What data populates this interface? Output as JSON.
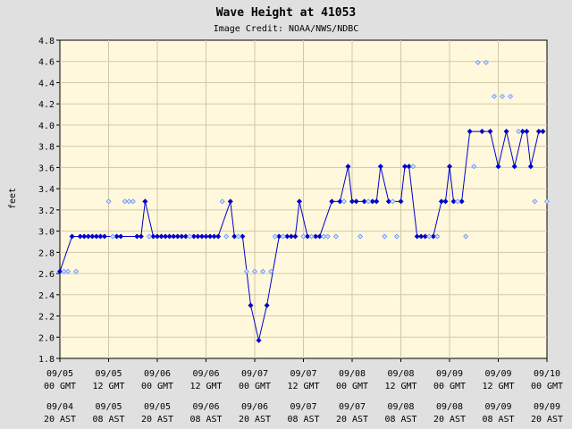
{
  "chart_data": {
    "type": "scatter",
    "title": "Wave Height at 41053",
    "subtitle": "Image Credit: NOAA/NWS/NDBC",
    "ylabel": "feet",
    "ylim": [
      1.8,
      4.8
    ],
    "yticks": [
      "1.8",
      "2.0",
      "2.2",
      "2.4",
      "2.6",
      "2.8",
      "3.0",
      "3.2",
      "3.4",
      "3.6",
      "3.8",
      "4.0",
      "4.2",
      "4.4",
      "4.6",
      "4.8"
    ],
    "x_unit": "hours since 09/05 00 GMT",
    "xlim": [
      0,
      120
    ],
    "xticks": [
      {
        "hour": 0,
        "gmt_date": "09/05",
        "gmt_time": "00 GMT",
        "ast_date": "09/04",
        "ast_time": "20 AST"
      },
      {
        "hour": 12,
        "gmt_date": "09/05",
        "gmt_time": "12 GMT",
        "ast_date": "09/05",
        "ast_time": "08 AST"
      },
      {
        "hour": 24,
        "gmt_date": "09/06",
        "gmt_time": "00 GMT",
        "ast_date": "09/05",
        "ast_time": "20 AST"
      },
      {
        "hour": 36,
        "gmt_date": "09/06",
        "gmt_time": "12 GMT",
        "ast_date": "09/06",
        "ast_time": "08 AST"
      },
      {
        "hour": 48,
        "gmt_date": "09/07",
        "gmt_time": "00 GMT",
        "ast_date": "09/06",
        "ast_time": "20 AST"
      },
      {
        "hour": 60,
        "gmt_date": "09/07",
        "gmt_time": "12 GMT",
        "ast_date": "09/07",
        "ast_time": "08 AST"
      },
      {
        "hour": 72,
        "gmt_date": "09/08",
        "gmt_time": "00 GMT",
        "ast_date": "09/07",
        "ast_time": "20 AST"
      },
      {
        "hour": 84,
        "gmt_date": "09/08",
        "gmt_time": "12 GMT",
        "ast_date": "09/08",
        "ast_time": "08 AST"
      },
      {
        "hour": 96,
        "gmt_date": "09/09",
        "gmt_time": "00 GMT",
        "ast_date": "09/08",
        "ast_time": "20 AST"
      },
      {
        "hour": 108,
        "gmt_date": "09/09",
        "gmt_time": "12 GMT",
        "ast_date": "09/09",
        "ast_time": "08 AST"
      },
      {
        "hour": 120,
        "gmt_date": "09/10",
        "gmt_time": "00 GMT",
        "ast_date": "09/09",
        "ast_time": "20 AST"
      }
    ],
    "grid": true,
    "colors": {
      "page_bg": "#e0e0e0",
      "plot_bg": "#fff8dc",
      "grid": "#d0c9a8",
      "series": "#0000cc",
      "secondary": "#6699ff"
    },
    "series": [
      {
        "style": "primary",
        "points": [
          [
            0,
            2.62
          ],
          [
            3,
            2.95
          ],
          [
            5,
            2.95
          ],
          [
            6,
            2.95
          ],
          [
            7,
            2.95
          ],
          [
            8,
            2.95
          ],
          [
            9,
            2.95
          ],
          [
            10,
            2.95
          ],
          [
            11,
            2.95
          ],
          [
            14,
            2.95
          ],
          [
            15,
            2.95
          ],
          [
            19,
            2.95
          ],
          [
            20,
            2.95
          ],
          [
            21,
            3.28
          ],
          [
            23,
            2.95
          ],
          [
            24,
            2.95
          ],
          [
            25,
            2.95
          ],
          [
            26,
            2.95
          ],
          [
            27,
            2.95
          ],
          [
            28,
            2.95
          ],
          [
            29,
            2.95
          ],
          [
            30,
            2.95
          ],
          [
            31,
            2.95
          ],
          [
            33,
            2.95
          ],
          [
            34,
            2.95
          ],
          [
            35,
            2.95
          ],
          [
            36,
            2.95
          ],
          [
            37,
            2.95
          ],
          [
            38,
            2.95
          ],
          [
            39,
            2.95
          ],
          [
            42,
            3.28
          ],
          [
            43,
            2.95
          ],
          [
            45,
            2.95
          ],
          [
            47,
            2.3
          ],
          [
            49,
            1.97
          ],
          [
            51,
            2.3
          ],
          [
            54,
            2.95
          ],
          [
            56,
            2.95
          ],
          [
            57,
            2.95
          ],
          [
            58,
            2.95
          ],
          [
            59,
            3.28
          ],
          [
            61,
            2.95
          ],
          [
            63,
            2.95
          ],
          [
            64,
            2.95
          ],
          [
            67,
            3.28
          ],
          [
            69,
            3.28
          ],
          [
            71,
            3.61
          ],
          [
            72,
            3.28
          ],
          [
            73,
            3.28
          ],
          [
            75,
            3.28
          ],
          [
            77,
            3.28
          ],
          [
            78,
            3.28
          ],
          [
            79,
            3.61
          ],
          [
            81,
            3.28
          ],
          [
            84,
            3.28
          ],
          [
            85,
            3.61
          ],
          [
            86,
            3.61
          ],
          [
            88,
            2.95
          ],
          [
            89,
            2.95
          ],
          [
            90,
            2.95
          ],
          [
            92,
            2.95
          ],
          [
            94,
            3.28
          ],
          [
            95,
            3.28
          ],
          [
            96,
            3.61
          ],
          [
            97,
            3.28
          ],
          [
            99,
            3.28
          ],
          [
            101,
            3.94
          ],
          [
            104,
            3.94
          ],
          [
            106,
            3.94
          ],
          [
            108,
            3.61
          ],
          [
            110,
            3.94
          ],
          [
            112,
            3.61
          ],
          [
            114,
            3.94
          ],
          [
            115,
            3.94
          ],
          [
            116,
            3.61
          ],
          [
            118,
            3.94
          ],
          [
            119,
            3.94
          ]
        ]
      },
      {
        "style": "secondary",
        "points": [
          [
            1,
            2.62
          ],
          [
            2,
            2.62
          ],
          [
            4,
            2.62
          ],
          [
            12,
            3.28
          ],
          [
            13,
            2.95
          ],
          [
            16,
            3.28
          ],
          [
            17,
            3.28
          ],
          [
            18,
            3.28
          ],
          [
            22,
            2.95
          ],
          [
            32,
            2.95
          ],
          [
            40,
            3.28
          ],
          [
            41,
            2.95
          ],
          [
            44,
            2.95
          ],
          [
            46,
            2.62
          ],
          [
            48,
            2.62
          ],
          [
            50,
            2.62
          ],
          [
            52,
            2.62
          ],
          [
            53,
            2.95
          ],
          [
            55,
            2.95
          ],
          [
            60,
            2.95
          ],
          [
            62,
            2.95
          ],
          [
            65,
            2.95
          ],
          [
            66,
            2.95
          ],
          [
            68,
            2.95
          ],
          [
            70,
            3.28
          ],
          [
            74,
            2.95
          ],
          [
            76,
            3.28
          ],
          [
            80,
            2.95
          ],
          [
            82,
            3.28
          ],
          [
            83,
            2.95
          ],
          [
            87,
            3.61
          ],
          [
            91,
            2.95
          ],
          [
            93,
            2.95
          ],
          [
            98,
            3.28
          ],
          [
            100,
            2.95
          ],
          [
            102,
            3.61
          ],
          [
            103,
            4.59
          ],
          [
            105,
            4.59
          ],
          [
            107,
            4.27
          ],
          [
            109,
            4.27
          ],
          [
            111,
            4.27
          ],
          [
            113,
            3.94
          ],
          [
            117,
            3.28
          ],
          [
            120,
            3.28
          ]
        ]
      }
    ]
  }
}
